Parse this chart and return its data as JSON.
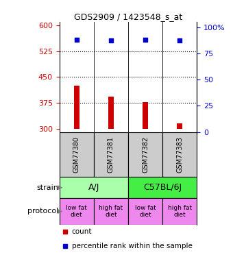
{
  "title": "GDS2909 / 1423548_s_at",
  "samples": [
    "GSM77380",
    "GSM77381",
    "GSM77382",
    "GSM77383"
  ],
  "bar_values": [
    425,
    393,
    378,
    315
  ],
  "bar_base": 300,
  "bar_color": "#cc0000",
  "dot_values": [
    88,
    87,
    88,
    87
  ],
  "dot_color": "#0000cc",
  "ylim_left": [
    290,
    610
  ],
  "ylim_right": [
    0,
    105
  ],
  "yticks_left": [
    300,
    375,
    450,
    525,
    600
  ],
  "yticks_right": [
    0,
    25,
    50,
    75,
    100
  ],
  "hlines": [
    525,
    450,
    375
  ],
  "strain_labels": [
    "A/J",
    "C57BL/6J"
  ],
  "strain_colors": [
    "#aaffaa",
    "#44ee44"
  ],
  "protocol_labels": [
    "low fat\ndiet",
    "high fat\ndiet",
    "low fat\ndiet",
    "high fat\ndiet"
  ],
  "protocol_color": "#ee88ee",
  "legend_red": "count",
  "legend_blue": "percentile rank within the sample",
  "left_axis_color": "#cc0000",
  "right_axis_color": "#0000cc",
  "sample_box_color": "#cccccc",
  "background_color": "#ffffff",
  "bar_width": 0.15
}
